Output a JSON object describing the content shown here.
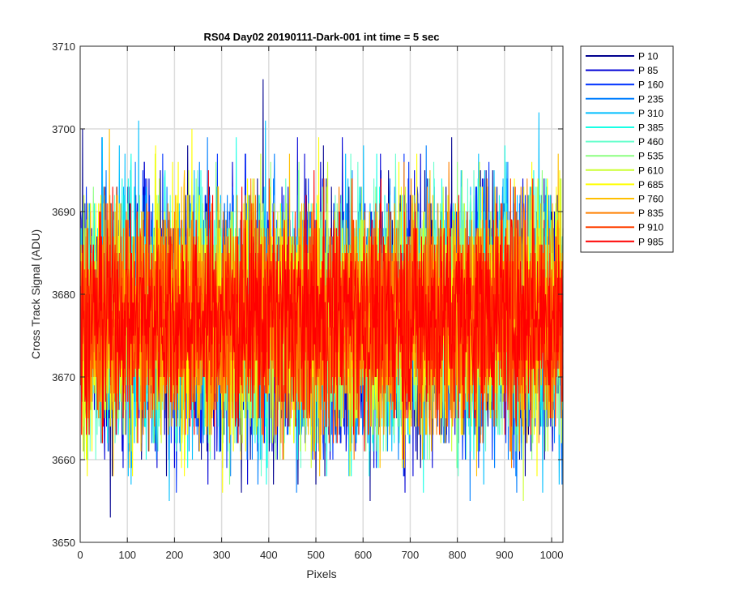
{
  "chart_data": {
    "type": "line",
    "title": "RS04 Day02 20190111-Dark-001 int time = 5 sec",
    "xlabel": "Pixels",
    "ylabel": "Cross Track Signal (ADU)",
    "xlim": [
      0,
      1024
    ],
    "ylim": [
      3650,
      3710
    ],
    "xticks": [
      0,
      100,
      200,
      300,
      400,
      500,
      600,
      700,
      800,
      900,
      1000
    ],
    "yticks": [
      3650,
      3660,
      3670,
      3680,
      3690,
      3700,
      3710
    ],
    "grid": true,
    "legend_position": "outside-top-right",
    "x_start": 1,
    "x_end": 1024,
    "series": [
      {
        "name": "P 10",
        "color": "#00008f",
        "mean": 3677.5,
        "std": 8.0,
        "min": 3651,
        "max": 3708
      },
      {
        "name": "P 85",
        "color": "#0000d6",
        "mean": 3677.5,
        "std": 8.0,
        "min": 3652,
        "max": 3705
      },
      {
        "name": "P 160",
        "color": "#0032ff",
        "mean": 3677.5,
        "std": 7.8,
        "min": 3654,
        "max": 3704
      },
      {
        "name": "P 235",
        "color": "#007fff",
        "mean": 3677.5,
        "std": 7.8,
        "min": 3655,
        "max": 3710
      },
      {
        "name": "P 310",
        "color": "#00bfff",
        "mean": 3677.5,
        "std": 7.6,
        "min": 3652,
        "max": 3707
      },
      {
        "name": "P 385",
        "color": "#19ffe6",
        "mean": 3677.5,
        "std": 7.6,
        "min": 3654,
        "max": 3701
      },
      {
        "name": "P 460",
        "color": "#66ffcc",
        "mean": 3677.5,
        "std": 7.4,
        "min": 3656,
        "max": 3700
      },
      {
        "name": "P 535",
        "color": "#8cff80",
        "mean": 3677.5,
        "std": 7.4,
        "min": 3656,
        "max": 3700
      },
      {
        "name": "P 610",
        "color": "#ccff33",
        "mean": 3677.5,
        "std": 7.2,
        "min": 3655,
        "max": 3705
      },
      {
        "name": "P 685",
        "color": "#ffff00",
        "mean": 3677.5,
        "std": 7.2,
        "min": 3654,
        "max": 3703
      },
      {
        "name": "P 760",
        "color": "#ffbf00",
        "mean": 3677.5,
        "std": 7.0,
        "min": 3656,
        "max": 3706
      },
      {
        "name": "P 835",
        "color": "#ff8000",
        "mean": 3677.5,
        "std": 6.8,
        "min": 3654,
        "max": 3703
      },
      {
        "name": "P 910",
        "color": "#ff4000",
        "mean": 3677.5,
        "std": 6.6,
        "min": 3655,
        "max": 3704
      },
      {
        "name": "P 985",
        "color": "#ff0000",
        "mean": 3677.5,
        "std": 6.4,
        "min": 3652,
        "max": 3700
      }
    ]
  }
}
